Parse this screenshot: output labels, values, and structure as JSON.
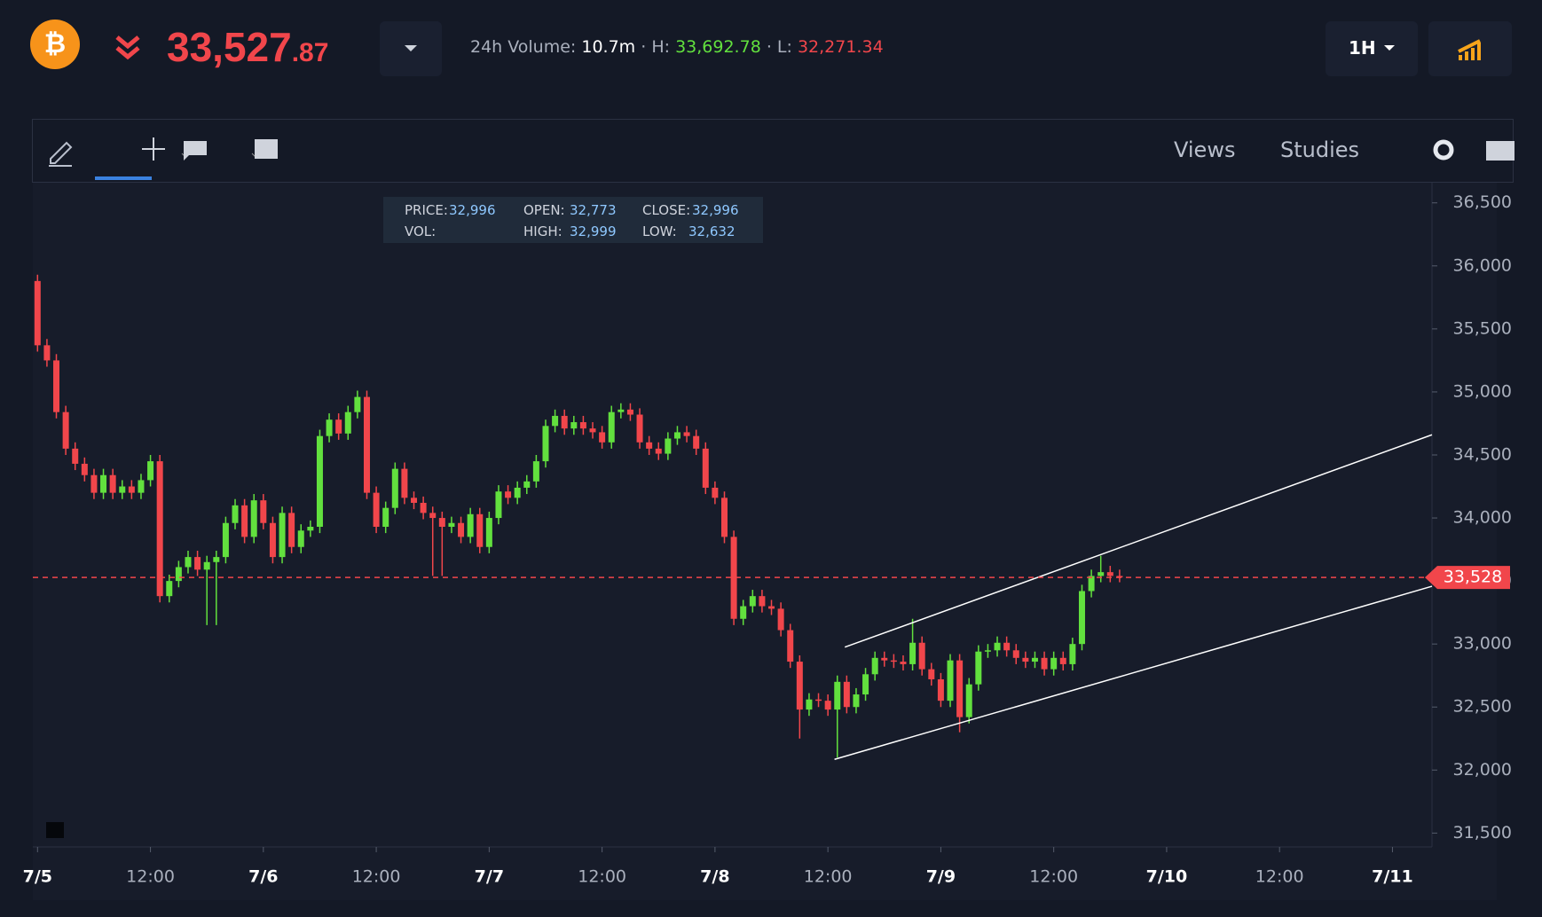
{
  "header": {
    "price_main": "33,527",
    "price_cents": ".87",
    "volume_label": "24h Volume:",
    "volume": "10.7m",
    "high_label": "· H:",
    "high": "33,692.78",
    "low_label": "· L:",
    "low": "32,271.34",
    "interval": "1H"
  },
  "toolbar": {
    "views": "Views",
    "studies": "Studies"
  },
  "info": {
    "price_label": "PRICE:",
    "price": "32,996",
    "open_label": "OPEN:",
    "open": "32,773",
    "close_label": "CLOSE:",
    "close": "32,996",
    "vol_label": "VOL:",
    "high_label": "HIGH:",
    "high": "32,999",
    "low_label": "LOW:",
    "low": "32,632"
  },
  "chart_data": {
    "type": "candlestick",
    "x": [
      0,
      1,
      2,
      3,
      4,
      5,
      6,
      7,
      8,
      9,
      10,
      11,
      12,
      13,
      14,
      15,
      16,
      17,
      18,
      19,
      20,
      21,
      22,
      23,
      24,
      25,
      26,
      27,
      28,
      29,
      30,
      31,
      32,
      33,
      34,
      35,
      36,
      37,
      38,
      39,
      40,
      41,
      42,
      43,
      44,
      45,
      46,
      47,
      48,
      49,
      50,
      51,
      52,
      53,
      54,
      55,
      56,
      57,
      58,
      59,
      60,
      61,
      62,
      63,
      64,
      65,
      66,
      67,
      68,
      69,
      70,
      71,
      72,
      73,
      74,
      75,
      76,
      77,
      78,
      79,
      80,
      81,
      82,
      83,
      84,
      85,
      86,
      87,
      88,
      89,
      90,
      91,
      92,
      93,
      94,
      95,
      96,
      97,
      98,
      99,
      100,
      101,
      102,
      103,
      104,
      105,
      106,
      107,
      108,
      109,
      110,
      111,
      112,
      113,
      114,
      115
    ],
    "open": [
      35880,
      35370,
      35250,
      34840,
      34550,
      34430,
      34340,
      34200,
      34340,
      34200,
      34250,
      34200,
      34300,
      34450,
      33380,
      33500,
      33610,
      33690,
      33590,
      33650,
      33690,
      33960,
      34100,
      33850,
      34140,
      33960,
      33690,
      34040,
      33770,
      33900,
      33930,
      34650,
      34780,
      34670,
      34840,
      34960,
      34200,
      33930,
      34080,
      34390,
      34160,
      34120,
      34040,
      34000,
      33930,
      33960,
      33850,
      34030,
      33770,
      34000,
      34210,
      34160,
      34240,
      34290,
      34450,
      34730,
      34810,
      34710,
      34760,
      34710,
      34680,
      34600,
      34840,
      34860,
      34820,
      34600,
      34550,
      34510,
      34630,
      34680,
      34650,
      34550,
      34240,
      34160,
      33850,
      33200,
      33300,
      33380,
      33300,
      33280,
      33110,
      32860,
      32480,
      32560,
      32550,
      32480,
      32700,
      32500,
      32600,
      32760,
      32890,
      32870,
      32860,
      32840,
      33010,
      32800,
      32720,
      32550,
      32870,
      32420,
      32680,
      32940,
      32950,
      33010,
      32950,
      32890,
      32860,
      32890,
      32800,
      32890,
      32840,
      33000,
      33420,
      33540,
      33570,
      33540
    ],
    "high": [
      35930,
      35420,
      35300,
      34890,
      34600,
      34480,
      34390,
      34390,
      34390,
      34300,
      34300,
      34350,
      34500,
      34500,
      33550,
      33660,
      33740,
      33740,
      33700,
      33740,
      34010,
      34150,
      34150,
      34190,
      34190,
      34010,
      34090,
      34090,
      33950,
      33980,
      34700,
      34830,
      34830,
      34890,
      35010,
      35010,
      34250,
      34130,
      34440,
      34440,
      34210,
      34170,
      34090,
      34050,
      34010,
      34010,
      34080,
      34080,
      34050,
      34260,
      34260,
      34290,
      34340,
      34500,
      34780,
      34860,
      34860,
      34810,
      34810,
      34760,
      34730,
      34890,
      34910,
      34910,
      34870,
      34650,
      34600,
      34680,
      34730,
      34730,
      34700,
      34600,
      34290,
      34210,
      33900,
      33350,
      33430,
      33430,
      33350,
      33330,
      33160,
      32910,
      32610,
      32610,
      32600,
      32750,
      32750,
      32650,
      32810,
      32940,
      32940,
      32920,
      32910,
      33200,
      33060,
      32850,
      32770,
      32920,
      32920,
      32730,
      32990,
      33000,
      33060,
      33060,
      33000,
      32940,
      32940,
      32940,
      32940,
      32940,
      33050,
      33470,
      33590,
      33700,
      33620,
      33590
    ],
    "low": [
      35320,
      35200,
      34790,
      34500,
      34380,
      34290,
      34150,
      34150,
      34150,
      34150,
      34150,
      34150,
      34250,
      33330,
      33330,
      33450,
      33560,
      33540,
      33150,
      33150,
      33640,
      33910,
      33800,
      33800,
      33910,
      33640,
      33640,
      33720,
      33720,
      33850,
      33880,
      34600,
      34620,
      34620,
      34790,
      34150,
      33880,
      33880,
      34030,
      34110,
      34070,
      33990,
      33540,
      33540,
      33880,
      33800,
      33800,
      33720,
      33720,
      33950,
      34110,
      34110,
      34190,
      34240,
      34400,
      34680,
      34660,
      34660,
      34660,
      34630,
      34550,
      34550,
      34790,
      34770,
      34550,
      34500,
      34460,
      34460,
      34580,
      34600,
      34500,
      34190,
      34110,
      33800,
      33150,
      33150,
      33250,
      33250,
      33230,
      33060,
      32810,
      32250,
      32430,
      32500,
      32430,
      32100,
      32450,
      32450,
      32550,
      32710,
      32820,
      32810,
      32790,
      32790,
      32750,
      32670,
      32500,
      32500,
      32300,
      32370,
      32630,
      32890,
      32900,
      32900,
      32840,
      32810,
      32810,
      32750,
      32750,
      32790,
      32790,
      32950,
      33370,
      33490,
      33490,
      33490
    ],
    "close": [
      35370,
      35250,
      34840,
      34550,
      34430,
      34340,
      34200,
      34340,
      34200,
      34250,
      34200,
      34300,
      34450,
      33380,
      33500,
      33610,
      33690,
      33590,
      33650,
      33690,
      33960,
      34100,
      33850,
      34140,
      33960,
      33690,
      34040,
      33770,
      33900,
      33930,
      34650,
      34780,
      34670,
      34840,
      34960,
      34200,
      33930,
      34080,
      34390,
      34160,
      34120,
      34040,
      34000,
      33930,
      33960,
      33850,
      34030,
      33770,
      34000,
      34210,
      34160,
      34240,
      34290,
      34450,
      34730,
      34810,
      34710,
      34760,
      34710,
      34680,
      34600,
      34840,
      34860,
      34820,
      34600,
      34550,
      34510,
      34630,
      34680,
      34650,
      34550,
      34240,
      34160,
      33850,
      33200,
      33300,
      33380,
      33300,
      33280,
      33110,
      32860,
      32480,
      32560,
      32550,
      32480,
      32700,
      32500,
      32600,
      32760,
      32890,
      32870,
      32860,
      32840,
      33010,
      32800,
      32720,
      32550,
      32870,
      32420,
      32680,
      32940,
      32950,
      33010,
      32950,
      32890,
      32860,
      32890,
      32800,
      32890,
      32840,
      33000,
      33420,
      33540,
      33570,
      33540,
      33528
    ],
    "up_color": "#62e03e",
    "down_color": "#f1464b",
    "last_price": {
      "value": 33528,
      "label": "33,528"
    },
    "trendlines": [
      {
        "x": [
          85.8,
          148.2
        ],
        "y": [
          32975,
          34660
        ]
      },
      {
        "x": [
          84.7,
          148.2
        ],
        "y": [
          32085,
          33458
        ]
      }
    ],
    "xlim": [
      -0.5,
      148.2
    ],
    "ylim": [
      31390,
      36660
    ],
    "xticks": [
      {
        "value": 0,
        "label": "7/5"
      },
      {
        "value": 12,
        "label": "12:00"
      },
      {
        "value": 24,
        "label": "7/6"
      },
      {
        "value": 36,
        "label": "12:00"
      },
      {
        "value": 48,
        "label": "7/7"
      },
      {
        "value": 60,
        "label": "12:00"
      },
      {
        "value": 72,
        "label": "7/8"
      },
      {
        "value": 84,
        "label": "12:00"
      },
      {
        "value": 96,
        "label": "7/9"
      },
      {
        "value": 108,
        "label": "12:00"
      },
      {
        "value": 120,
        "label": "7/10"
      },
      {
        "value": 132,
        "label": "12:00"
      },
      {
        "value": 144,
        "label": "7/11"
      }
    ],
    "yticks": [
      {
        "value": 31500,
        "label": "31,500"
      },
      {
        "value": 32000,
        "label": "32,000"
      },
      {
        "value": 32500,
        "label": "32,500"
      },
      {
        "value": 33000,
        "label": "33,000"
      },
      {
        "value": 33500,
        "label": "33,500"
      },
      {
        "value": 34000,
        "label": "34,000"
      },
      {
        "value": 34500,
        "label": "34,500"
      },
      {
        "value": 35000,
        "label": "35,000"
      },
      {
        "value": 35500,
        "label": "35,500"
      },
      {
        "value": 36000,
        "label": "36,000"
      },
      {
        "value": 36500,
        "label": "36,500"
      }
    ]
  }
}
